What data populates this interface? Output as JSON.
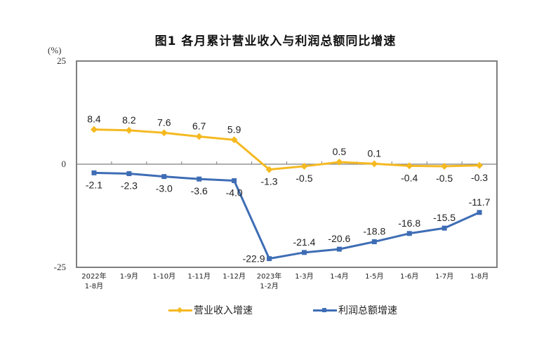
{
  "title": "图1  各月累计营业收入与利润总额同比增速",
  "unit_label": "(%)",
  "y_ticks": [
    "25",
    "0",
    "-25"
  ],
  "legend": {
    "revenue": "营业收入增速",
    "profit": "利润总额增速"
  },
  "colors": {
    "revenue": "#F5B921",
    "profit": "#3E6DB5",
    "axis": "#7f7f7f"
  },
  "chart_data": {
    "type": "line",
    "title": "图1  各月累计营业收入与利润总额同比增速",
    "xlabel": "",
    "ylabel": "(%)",
    "ylim": [
      -25,
      25
    ],
    "grid": false,
    "legend_position": "bottom",
    "categories": [
      "2022年\n1-8月",
      "1-9月",
      "1-10月",
      "1-11月",
      "1-12月",
      "2023年\n1-2月",
      "1-3月",
      "1-4月",
      "1-5月",
      "1-6月",
      "1-7月",
      "1-8月"
    ],
    "series": [
      {
        "name": "营业收入增速",
        "values": [
          8.4,
          8.2,
          7.6,
          6.7,
          5.9,
          -1.3,
          -0.5,
          0.5,
          0.1,
          -0.4,
          -0.5,
          -0.3
        ]
      },
      {
        "name": "利润总额增速",
        "values": [
          -2.1,
          -2.3,
          -3.0,
          -3.6,
          -4.0,
          -22.9,
          -21.4,
          -20.6,
          -18.8,
          -16.8,
          -15.5,
          -11.7
        ]
      }
    ]
  }
}
